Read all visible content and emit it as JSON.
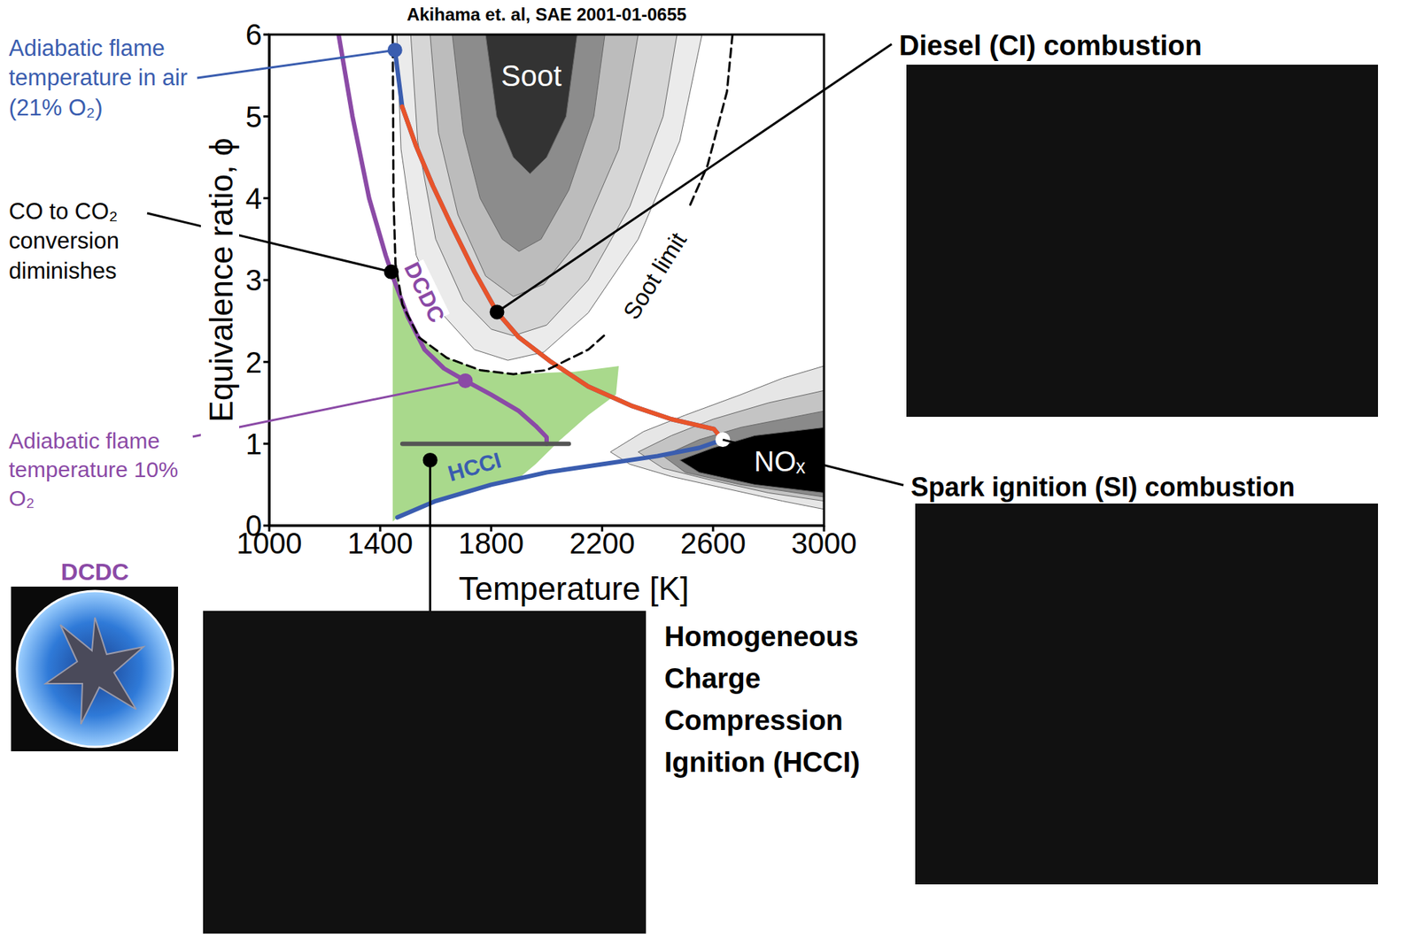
{
  "chart_data": {
    "type": "line",
    "title": "Akihama et. al, SAE 2001-01-0655",
    "x_label": "Temperature [K]",
    "y_label": "Equivalence ratio, ϕ",
    "xlim": [
      1000,
      3000
    ],
    "xticks": [
      1000,
      1400,
      1800,
      2200,
      2600,
      3000
    ],
    "ylim": [
      0,
      6
    ],
    "yticks": [
      0,
      1,
      2,
      3,
      4,
      5,
      6
    ],
    "grid": false,
    "regions": [
      {
        "color": "#a9d98c",
        "x": [
          1445,
          1445,
          1462,
          1600,
          1800,
          1900,
          1960,
          2050,
          2150,
          2250,
          2260,
          2100,
          1880,
          1760,
          1640,
          1540,
          1480,
          1455
        ],
        "values": [
          3.1,
          0.05,
          0.1,
          0.3,
          0.5,
          0.58,
          0.75,
          1.05,
          1.35,
          1.6,
          1.95,
          1.88,
          1.85,
          1.9,
          2.05,
          2.3,
          2.7,
          3.2
        ]
      },
      {
        "colors": [
          "#ebebeb",
          "#d6d6d6",
          "#bcbcbc",
          "#8c8c8c",
          "#333333"
        ],
        "contours": [
          {
            "x": [
              1460,
              1475,
              1530,
              1620,
              1740,
              1860,
              1990,
              2150,
              2330,
              2480,
              2560
            ],
            "values": [
              6,
              4.6,
              3.3,
              2.6,
              2.15,
              2.02,
              2.12,
              2.6,
              3.5,
              4.7,
              6
            ]
          },
          {
            "x": [
              1510,
              1535,
              1600,
              1700,
              1800,
              1880,
              2000,
              2150,
              2300,
              2420,
              2470
            ],
            "values": [
              6,
              4.7,
              3.5,
              2.75,
              2.4,
              2.32,
              2.45,
              3.0,
              3.9,
              5.0,
              6
            ]
          },
          {
            "x": [
              1580,
              1610,
              1680,
              1780,
              1880,
              1990,
              2120,
              2260,
              2330
            ],
            "values": [
              6,
              4.8,
              3.8,
              3.05,
              2.8,
              2.95,
              3.5,
              4.6,
              6
            ]
          },
          {
            "x": [
              1660,
              1700,
              1760,
              1840,
              1900,
              1980,
              2080,
              2170,
              2210
            ],
            "values": [
              6,
              4.8,
              4.0,
              3.5,
              3.35,
              3.5,
              4.1,
              5.0,
              6
            ]
          },
          {
            "x": [
              1780,
              1820,
              1880,
              1940,
              2000,
              2070,
              2110
            ],
            "values": [
              6,
              5.0,
              4.5,
              4.3,
              4.5,
              5.0,
              6
            ]
          }
        ]
      },
      {
        "colors": [
          "#e6e6e6",
          "#c4c4c4",
          "#8a8a8a",
          "#000000"
        ],
        "contours": [
          {
            "x": [
              2230,
              2350,
              2500,
              2700,
              2850,
              3000,
              3000,
              2850,
              2650,
              2450,
              2300
            ],
            "values": [
              0.9,
              1.15,
              1.35,
              1.6,
              1.8,
              1.95,
              0.2,
              0.3,
              0.45,
              0.6,
              0.75
            ]
          },
          {
            "x": [
              2330,
              2450,
              2600,
              2800,
              3000,
              3000,
              2800,
              2600,
              2420
            ],
            "values": [
              0.9,
              1.1,
              1.3,
              1.5,
              1.65,
              0.3,
              0.4,
              0.55,
              0.7
            ]
          },
          {
            "x": [
              2420,
              2550,
              2700,
              3000,
              3000,
              2700,
              2500
            ],
            "values": [
              0.85,
              1.05,
              1.2,
              1.4,
              0.35,
              0.5,
              0.65
            ]
          },
          {
            "x": [
              2480,
              2600,
              2750,
              3000,
              3000,
              2750,
              2550
            ],
            "values": [
              0.8,
              0.95,
              1.1,
              1.2,
              0.4,
              0.5,
              0.65
            ]
          }
        ]
      }
    ],
    "series": [
      {
        "color": "#3a5daf",
        "x": [
          1462,
          1600,
          1800,
          2000,
          2200,
          2400,
          2550,
          2635,
          2603,
          2450,
          2309,
          2150,
          2016,
          1900,
          1821,
          1740,
          1658,
          1590,
          1528,
          1479,
          1453
        ],
        "values": [
          0.1,
          0.3,
          0.5,
          0.65,
          0.75,
          0.85,
          0.95,
          1.05,
          1.18,
          1.3,
          1.46,
          1.7,
          2.0,
          2.3,
          2.61,
          3.1,
          3.66,
          4.15,
          4.65,
          5.12,
          5.81
        ]
      },
      {
        "color": "#e8542a",
        "x": [
          2635,
          2603,
          2450,
          2309,
          2150,
          2016,
          1900,
          1821,
          1740,
          1658,
          1590,
          1528,
          1479
        ],
        "values": [
          1.05,
          1.18,
          1.3,
          1.46,
          1.7,
          2.0,
          2.3,
          2.61,
          3.1,
          3.66,
          4.15,
          4.65,
          5.12
        ]
      },
      {
        "color": "#8b4aa6",
        "x": [
          1250,
          1300,
          1360,
          1420,
          1450,
          1500,
          1560,
          1630,
          1707,
          1800,
          1900,
          1960,
          2000,
          2000
        ],
        "values": [
          6,
          5,
          4,
          3.3,
          3.0,
          2.55,
          2.15,
          1.92,
          1.77,
          1.6,
          1.4,
          1.22,
          1.08,
          1.0
        ]
      },
      {
        "color": "#555555",
        "x": [
          1480,
          2080
        ],
        "values": [
          1,
          1
        ]
      },
      {
        "color": "#000000",
        "line_style": "dashed",
        "x": [
          1445,
          1448,
          1455,
          1480,
          1540,
          1640,
          1760,
          1880,
          2000,
          2150,
          2300,
          2450,
          2580,
          2650,
          2670
        ],
        "values": [
          6,
          4.0,
          3.2,
          2.7,
          2.3,
          2.05,
          1.9,
          1.85,
          1.9,
          2.15,
          2.6,
          3.4,
          4.4,
          5.3,
          6
        ]
      }
    ],
    "labels": [
      {
        "text": "Soot",
        "color": "#ffffff"
      },
      {
        "text": "Soot limit",
        "color": "#000000"
      },
      {
        "text": "NOₓ",
        "color": "#ffffff"
      },
      {
        "text": "DCDC",
        "color": "#8b4aa6"
      },
      {
        "text": "HCCI",
        "color": "#3a5daf"
      }
    ],
    "annotations": [
      {
        "text": "Adiabatic flame temperature in air (21% O₂)",
        "x": 1453,
        "y": 5.81,
        "color": "#3a5daf"
      },
      {
        "text": "CO to CO₂ conversion diminishes",
        "x": 1440,
        "y": 3.1,
        "color": "#000000"
      },
      {
        "text": "Adiabatic flame temperature 10% O₂",
        "x": 1707,
        "y": 1.77,
        "color": "#8b4aa6"
      },
      {
        "text": "Diesel (CI) combustion",
        "x": 1821,
        "y": 2.61,
        "color": "#000000"
      },
      {
        "text": "Spark ignition (SI) combustion",
        "x": 2635,
        "y": 1.05,
        "color": "#000000",
        "marker": "hollow"
      },
      {
        "text": "Homogeneous Charge Compression Ignition (HCCI)",
        "x": 1580,
        "y": 0.8,
        "color": "#000000"
      }
    ],
    "inset_label": "DCDC"
  }
}
